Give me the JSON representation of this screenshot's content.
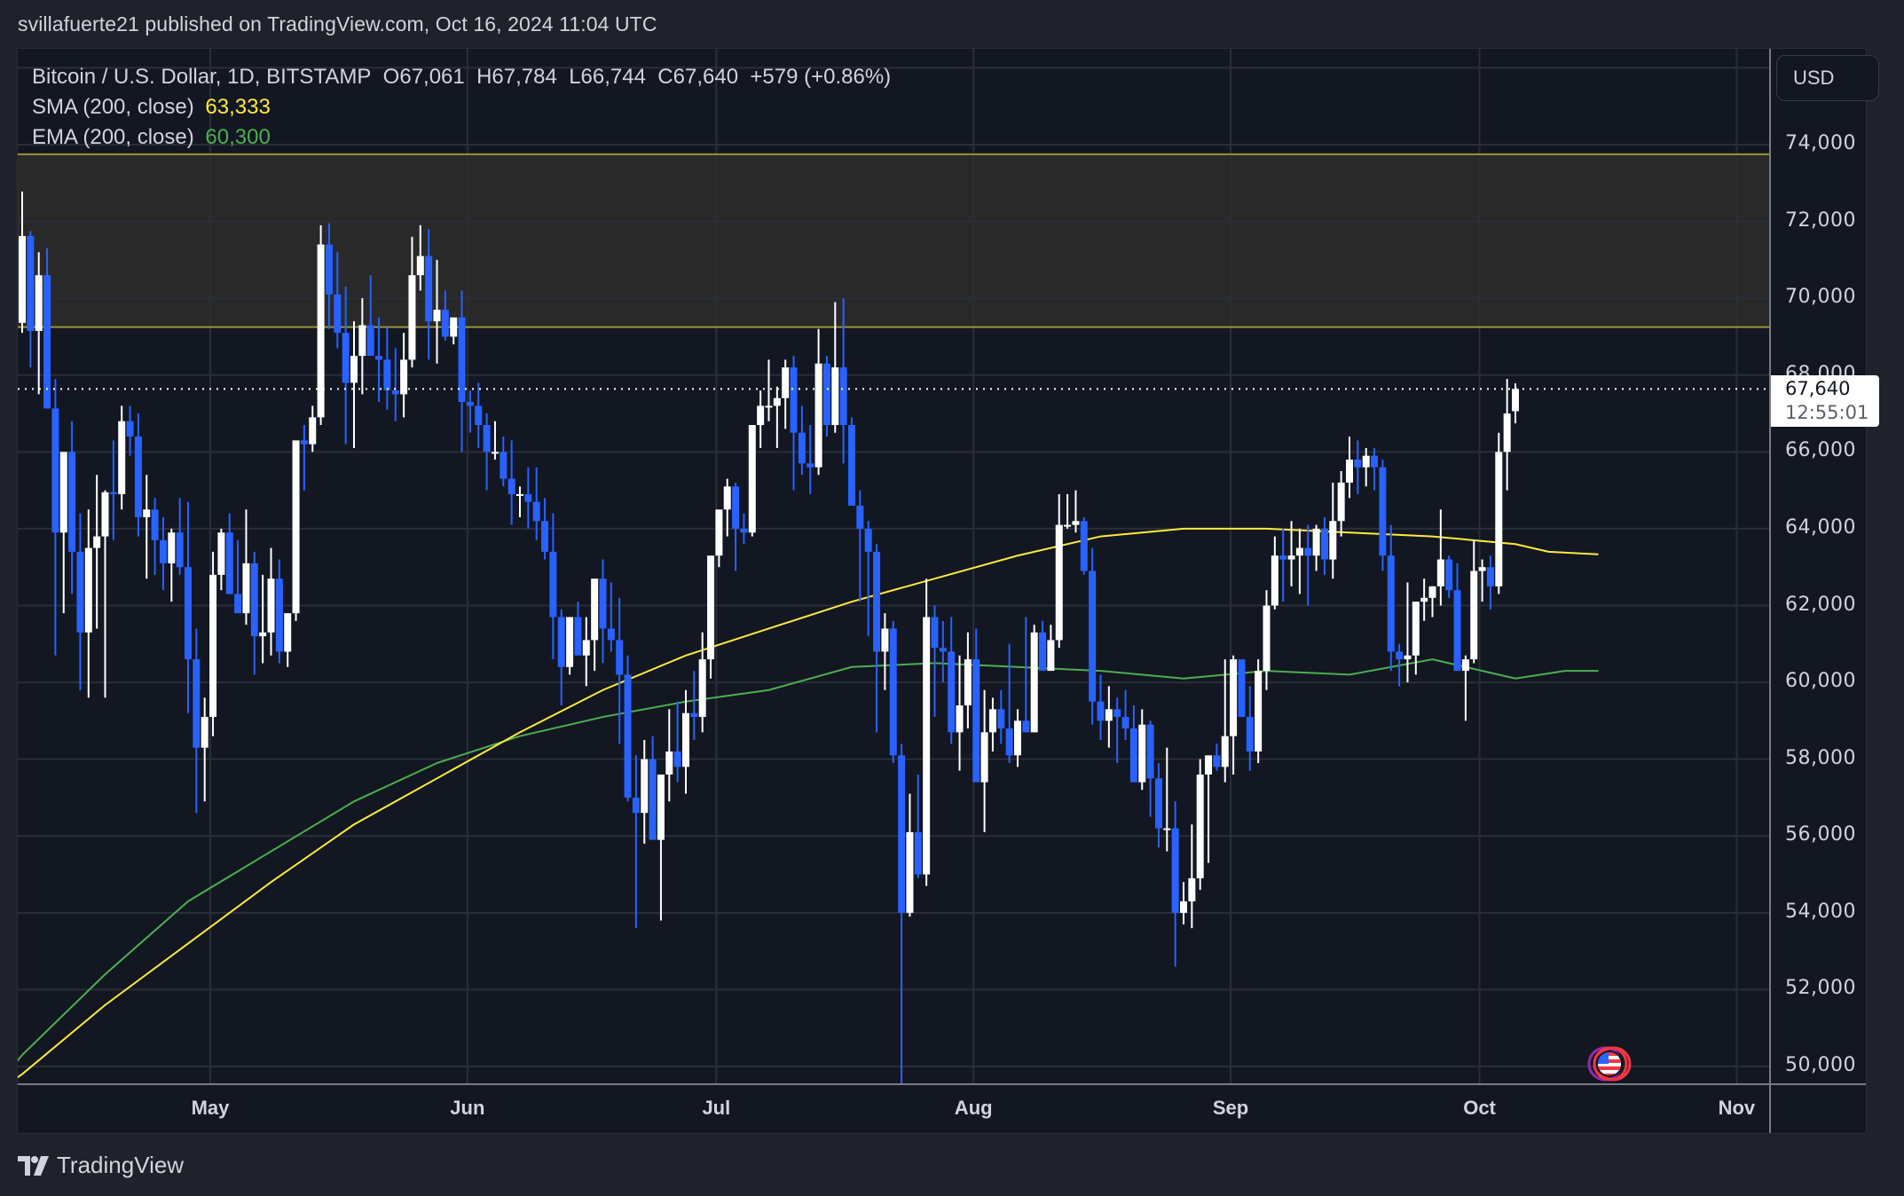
{
  "header": {
    "published": "svillafuerte21 published on TradingView.com, Oct 16, 2024 11:04 UTC"
  },
  "legend": {
    "symbol": "Bitcoin / U.S. Dollar, 1D, BITSTAMP",
    "open": "O67,061",
    "high": "H67,784",
    "low": "L66,744",
    "close": "C67,640",
    "change": "+579 (+0.86%)",
    "sma_label": "SMA (200, close)",
    "sma_value": "63,333",
    "ema_label": "EMA (200, close)",
    "ema_value": "60,300"
  },
  "price_axis": {
    "currency": "USD",
    "last_price": "67,640",
    "countdown": "12:55:01"
  },
  "footer": {
    "brand": "TradingView"
  },
  "colors": {
    "background": "#131722",
    "frame": "#1f222b",
    "grid": "#2a2e39",
    "up_candle": "#ffffff",
    "down_candle": "#2962ff",
    "sma": "#ffeb3b",
    "ema": "#4caf50",
    "zone_fill": "#29292a",
    "zone_border": "#9b9433",
    "text": "#d1d4dc"
  },
  "chart_data": {
    "type": "candlestick",
    "title": "Bitcoin / U.S. Dollar, 1D, BITSTAMP",
    "xlabel": "",
    "ylabel": "USD",
    "ylim": [
      49500,
      76500
    ],
    "y_ticks": [
      50000,
      52000,
      54000,
      56000,
      58000,
      60000,
      62000,
      64000,
      66000,
      68000,
      70000,
      72000,
      74000
    ],
    "y_tick_labels": [
      "50,000",
      "52,000",
      "54,000",
      "56,000",
      "58,000",
      "60,000",
      "62,000",
      "64,000",
      "66,000",
      "68,000",
      "70,000",
      "72,000",
      "74,000"
    ],
    "x_ticks": [
      "May",
      "Jun",
      "Jul",
      "Aug",
      "Sep",
      "Oct",
      "Nov"
    ],
    "x_tick_day_index": [
      23,
      54,
      84,
      115,
      146,
      176,
      207
    ],
    "start_date": "2024-04-08",
    "grid": true,
    "last_price": 67640,
    "last_price_line": "dotted",
    "resistance_zone": {
      "low": 69250,
      "high": 73750
    },
    "ohlc": [
      [
        69360,
        72780,
        69100,
        71620
      ],
      [
        71620,
        71750,
        68200,
        69150
      ],
      [
        69150,
        71200,
        67500,
        70600
      ],
      [
        70600,
        71300,
        67600,
        67130
      ],
      [
        67130,
        67900,
        60700,
        63900
      ],
      [
        63900,
        65800,
        61800,
        66000
      ],
      [
        66000,
        66800,
        62300,
        63400
      ],
      [
        63400,
        64400,
        59800,
        61300
      ],
      [
        61300,
        64500,
        59600,
        63500
      ],
      [
        63500,
        65400,
        61400,
        63800
      ],
      [
        63800,
        65000,
        59600,
        64950
      ],
      [
        64950,
        66300,
        63700,
        64900
      ],
      [
        64900,
        67200,
        64500,
        66800
      ],
      [
        66800,
        67200,
        65900,
        66400
      ],
      [
        66400,
        67000,
        63800,
        64300
      ],
      [
        64300,
        65400,
        62700,
        64500
      ],
      [
        64500,
        64800,
        62800,
        63700
      ],
      [
        63700,
        64300,
        62400,
        63100
      ],
      [
        63100,
        64000,
        62100,
        63900
      ],
      [
        63900,
        64800,
        62800,
        63000
      ],
      [
        63000,
        64700,
        59200,
        60600
      ],
      [
        60600,
        61400,
        56600,
        58300
      ],
      [
        58300,
        59600,
        56900,
        59100
      ],
      [
        59100,
        63400,
        58600,
        62800
      ],
      [
        62800,
        64000,
        62400,
        63900
      ],
      [
        63900,
        64400,
        62700,
        62300
      ],
      [
        62300,
        63700,
        62000,
        61800
      ],
      [
        61800,
        64500,
        61500,
        63100
      ],
      [
        63100,
        63400,
        60200,
        61200
      ],
      [
        61200,
        62800,
        60500,
        61300
      ],
      [
        61300,
        63500,
        60700,
        62700
      ],
      [
        62700,
        63200,
        60500,
        60800
      ],
      [
        60800,
        61500,
        60400,
        61800
      ],
      [
        61800,
        66100,
        61600,
        66300
      ],
      [
        66300,
        66700,
        65000,
        66200
      ],
      [
        66200,
        67200,
        66000,
        66900
      ],
      [
        66900,
        71900,
        66700,
        71400
      ],
      [
        71400,
        71950,
        69200,
        70100
      ],
      [
        70100,
        71200,
        68700,
        69100
      ],
      [
        69100,
        70300,
        66200,
        67800
      ],
      [
        67800,
        69400,
        66100,
        68500
      ],
      [
        68500,
        70000,
        67500,
        69300
      ],
      [
        69300,
        70600,
        68600,
        68500
      ],
      [
        68500,
        69500,
        67300,
        68400
      ],
      [
        68400,
        69250,
        67100,
        67600
      ],
      [
        67600,
        68700,
        66800,
        67500
      ],
      [
        67500,
        69100,
        66900,
        68400
      ],
      [
        68400,
        71600,
        68200,
        70600
      ],
      [
        70600,
        71900,
        70200,
        71100
      ],
      [
        71100,
        71800,
        68400,
        69400
      ],
      [
        69400,
        71000,
        68300,
        69700
      ],
      [
        69700,
        70200,
        68900,
        69000
      ],
      [
        69000,
        69500,
        68800,
        69500
      ],
      [
        69500,
        70200,
        66000,
        67300
      ],
      [
        67300,
        67600,
        66500,
        67200
      ],
      [
        67200,
        67800,
        66100,
        66700
      ],
      [
        66700,
        67000,
        65000,
        66000
      ],
      [
        66000,
        66800,
        65800,
        66000
      ],
      [
        66000,
        66400,
        65100,
        65300
      ],
      [
        65300,
        66300,
        64100,
        64900
      ],
      [
        64900,
        65100,
        64300,
        64900
      ],
      [
        64900,
        65600,
        64000,
        64700
      ],
      [
        64700,
        65600,
        63700,
        64200
      ],
      [
        64200,
        64800,
        63200,
        63400
      ],
      [
        63400,
        64400,
        60600,
        61700
      ],
      [
        61700,
        61900,
        59400,
        60400
      ],
      [
        60400,
        61600,
        60200,
        61700
      ],
      [
        61700,
        62100,
        60700,
        60700
      ],
      [
        60700,
        61700,
        59900,
        61100
      ],
      [
        61100,
        62700,
        60300,
        62700
      ],
      [
        62700,
        63200,
        60500,
        61400
      ],
      [
        61400,
        62600,
        60800,
        61100
      ],
      [
        61100,
        62200,
        58400,
        60200
      ],
      [
        60200,
        60700,
        56900,
        57000
      ],
      [
        57000,
        58100,
        53600,
        56600
      ],
      [
        56600,
        58500,
        55800,
        58000
      ],
      [
        58000,
        58600,
        56600,
        55900
      ],
      [
        55900,
        56000,
        53800,
        57600
      ],
      [
        57600,
        59300,
        56900,
        58200
      ],
      [
        58200,
        59500,
        57400,
        57800
      ],
      [
        57800,
        59800,
        57100,
        59200
      ],
      [
        59200,
        60300,
        58500,
        59100
      ],
      [
        59100,
        61300,
        58700,
        60600
      ],
      [
        60600,
        62400,
        60100,
        63300
      ],
      [
        63300,
        64400,
        63000,
        64500
      ],
      [
        64500,
        65300,
        63800,
        65100
      ],
      [
        65100,
        65200,
        62900,
        64000
      ],
      [
        64000,
        64400,
        63600,
        63900
      ],
      [
        63900,
        66700,
        63800,
        66700
      ],
      [
        66700,
        67600,
        66100,
        67200
      ],
      [
        67200,
        68400,
        66800,
        67200
      ],
      [
        67200,
        67700,
        66100,
        67400
      ],
      [
        67400,
        68400,
        66600,
        68200
      ],
      [
        68200,
        68500,
        65000,
        66500
      ],
      [
        66500,
        67200,
        65400,
        65700
      ],
      [
        65700,
        66700,
        64900,
        65600
      ],
      [
        65600,
        69200,
        65400,
        68300
      ],
      [
        68300,
        68500,
        66400,
        66700
      ],
      [
        66700,
        69900,
        66500,
        68200
      ],
      [
        68200,
        70000,
        65700,
        66700
      ],
      [
        66700,
        66900,
        65400,
        64600
      ],
      [
        64600,
        65000,
        62100,
        64000
      ],
      [
        64000,
        64200,
        61200,
        63400
      ],
      [
        63400,
        63600,
        58700,
        60800
      ],
      [
        60800,
        61800,
        59800,
        61400
      ],
      [
        61400,
        61600,
        57900,
        58100
      ],
      [
        58100,
        58400,
        49000,
        54000
      ],
      [
        54000,
        57100,
        53900,
        56100
      ],
      [
        56100,
        57600,
        54900,
        55000
      ],
      [
        55000,
        62700,
        54700,
        61700
      ],
      [
        61700,
        62000,
        59100,
        60900
      ],
      [
        60900,
        61600,
        60000,
        60800
      ],
      [
        60800,
        61700,
        58400,
        58700
      ],
      [
        58700,
        60700,
        57700,
        59400
      ],
      [
        59400,
        61300,
        58800,
        60600
      ],
      [
        60600,
        61400,
        57600,
        57400
      ],
      [
        57400,
        59800,
        56100,
        58700
      ],
      [
        58700,
        59600,
        58200,
        59300
      ],
      [
        59300,
        59800,
        58400,
        58800
      ],
      [
        58800,
        61000,
        57900,
        58100
      ],
      [
        58100,
        59300,
        57800,
        59000
      ],
      [
        59000,
        61700,
        58800,
        58700
      ],
      [
        58700,
        61500,
        58700,
        61300
      ],
      [
        61300,
        61600,
        60400,
        60300
      ],
      [
        60300,
        61500,
        60400,
        61100
      ],
      [
        61100,
        64900,
        60900,
        64100
      ],
      [
        64100,
        64900,
        64000,
        64100
      ],
      [
        64100,
        65000,
        63900,
        64200
      ],
      [
        64200,
        64300,
        62800,
        62900
      ],
      [
        62900,
        63500,
        58900,
        59500
      ],
      [
        59500,
        60200,
        58500,
        59000
      ],
      [
        59000,
        59900,
        58300,
        59300
      ],
      [
        59300,
        59600,
        57900,
        59100
      ],
      [
        59100,
        59800,
        58500,
        58800
      ],
      [
        58800,
        59400,
        57700,
        57400
      ],
      [
        57400,
        59300,
        57200,
        58900
      ],
      [
        58900,
        59000,
        56500,
        57500
      ],
      [
        57500,
        57900,
        55700,
        56200
      ],
      [
        56200,
        58300,
        55600,
        56200
      ],
      [
        56200,
        56900,
        52600,
        54000
      ],
      [
        54000,
        54800,
        53700,
        54300
      ],
      [
        54300,
        56300,
        53600,
        54900
      ],
      [
        54900,
        58000,
        54600,
        57600
      ],
      [
        57600,
        58000,
        55300,
        58100
      ],
      [
        58100,
        58400,
        57700,
        57800
      ],
      [
        57800,
        60600,
        57400,
        58600
      ],
      [
        58600,
        60700,
        57600,
        60600
      ],
      [
        60600,
        60400,
        59200,
        59100
      ],
      [
        59100,
        59900,
        57700,
        58200
      ],
      [
        58200,
        60600,
        57900,
        60300
      ],
      [
        60300,
        62400,
        59800,
        62000
      ],
      [
        62000,
        63800,
        61900,
        63300
      ],
      [
        63300,
        64000,
        62100,
        63200
      ],
      [
        63200,
        64200,
        62500,
        63300
      ],
      [
        63300,
        64000,
        62300,
        63500
      ],
      [
        63500,
        64100,
        62000,
        63300
      ],
      [
        63300,
        64100,
        62900,
        64000
      ],
      [
        64000,
        64300,
        62800,
        63200
      ],
      [
        63200,
        65200,
        62700,
        64200
      ],
      [
        64200,
        65500,
        63800,
        65200
      ],
      [
        65200,
        66400,
        64800,
        65800
      ],
      [
        65800,
        66300,
        64900,
        65600
      ],
      [
        65600,
        66100,
        65100,
        65900
      ],
      [
        65900,
        66100,
        65000,
        65600
      ],
      [
        65600,
        65800,
        62900,
        63300
      ],
      [
        63300,
        64100,
        60300,
        60800
      ],
      [
        60800,
        61000,
        59900,
        60600
      ],
      [
        60600,
        62600,
        60000,
        60700
      ],
      [
        60700,
        62000,
        60200,
        62100
      ],
      [
        62100,
        62700,
        61600,
        62200
      ],
      [
        62200,
        62500,
        61700,
        62500
      ],
      [
        62500,
        64500,
        62000,
        63200
      ],
      [
        63200,
        63300,
        62200,
        62400
      ],
      [
        62400,
        63100,
        61900,
        60300
      ],
      [
        60300,
        60700,
        59000,
        60600
      ],
      [
        60600,
        63700,
        60500,
        62900
      ],
      [
        62900,
        63200,
        62100,
        63000
      ],
      [
        63000,
        63300,
        61900,
        62500
      ],
      [
        62500,
        66500,
        62300,
        66000
      ],
      [
        66000,
        67900,
        65000,
        67000
      ],
      [
        67061,
        67784,
        66744,
        67640
      ]
    ],
    "sma_200": [
      [
        -2,
        49500
      ],
      [
        0,
        49800
      ],
      [
        10,
        51600
      ],
      [
        20,
        53200
      ],
      [
        30,
        54800
      ],
      [
        40,
        56300
      ],
      [
        50,
        57500
      ],
      [
        60,
        58700
      ],
      [
        70,
        59800
      ],
      [
        80,
        60700
      ],
      [
        90,
        61400
      ],
      [
        100,
        62100
      ],
      [
        110,
        62700
      ],
      [
        120,
        63300
      ],
      [
        130,
        63800
      ],
      [
        140,
        64000
      ],
      [
        150,
        64000
      ],
      [
        160,
        63900
      ],
      [
        170,
        63800
      ],
      [
        180,
        63600
      ],
      [
        184,
        63400
      ],
      [
        190,
        63333
      ]
    ],
    "ema_200": [
      [
        -3,
        49500
      ],
      [
        0,
        50300
      ],
      [
        10,
        52400
      ],
      [
        20,
        54300
      ],
      [
        30,
        55600
      ],
      [
        40,
        56900
      ],
      [
        50,
        57900
      ],
      [
        60,
        58600
      ],
      [
        70,
        59100
      ],
      [
        80,
        59500
      ],
      [
        90,
        59800
      ],
      [
        100,
        60400
      ],
      [
        110,
        60500
      ],
      [
        120,
        60400
      ],
      [
        130,
        60300
      ],
      [
        140,
        60100
      ],
      [
        150,
        60300
      ],
      [
        160,
        60200
      ],
      [
        170,
        60600
      ],
      [
        180,
        60100
      ],
      [
        186,
        60300
      ],
      [
        190,
        60300
      ]
    ]
  }
}
